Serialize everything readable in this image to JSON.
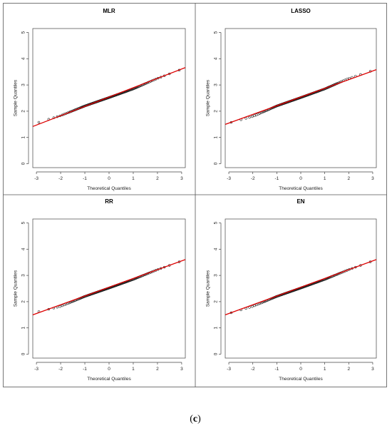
{
  "caption": {
    "open": "(",
    "letter": "c",
    "close": ")"
  },
  "colors": {
    "points": "#222222",
    "fit_line": "#dd0000",
    "border": "#555555",
    "axes": "#444444"
  },
  "chart_data": [
    {
      "type": "scatter",
      "title": "MLR",
      "xlabel": "Theoretical Quantiles",
      "ylabel": "Sample Quantiles",
      "xlim": [
        -3,
        3
      ],
      "ylim": [
        0,
        5
      ],
      "x_ticks": [
        "-3",
        "-2",
        "-1",
        "0",
        "1",
        "2",
        "3"
      ],
      "y_ticks": [
        "0",
        "1",
        "2",
        "3",
        "4",
        "5"
      ],
      "grid": false,
      "qq_points": {
        "n": 160,
        "x_range": [
          -2.9,
          2.9
        ],
        "sample_at": {
          "x": [
            -3,
            -2,
            -1,
            0,
            1,
            2,
            3
          ],
          "y": [
            1.55,
            1.83,
            2.2,
            2.52,
            2.85,
            3.25,
            3.6
          ]
        }
      },
      "fit_line": {
        "x": [
          -3.2,
          3.2
        ],
        "y": [
          1.4,
          3.68
        ]
      }
    },
    {
      "type": "scatter",
      "title": "LASSO",
      "xlabel": "Theoretical Quantiles",
      "ylabel": "Sample Quantiles",
      "xlim": [
        -3,
        3
      ],
      "ylim": [
        0,
        5
      ],
      "x_ticks": [
        "-3",
        "-2",
        "-1",
        "0",
        "1",
        "2",
        "3"
      ],
      "y_ticks": [
        "0",
        "1",
        "2",
        "3",
        "4",
        "5"
      ],
      "grid": false,
      "qq_points": {
        "n": 160,
        "x_range": [
          -2.9,
          2.9
        ],
        "sample_at": {
          "x": [
            -3,
            -2,
            -1,
            0,
            1,
            2,
            3
          ],
          "y": [
            1.55,
            1.8,
            2.2,
            2.52,
            2.85,
            3.25,
            3.55
          ]
        }
      },
      "fit_line": {
        "x": [
          -3.2,
          3.2
        ],
        "y": [
          1.48,
          3.6
        ]
      }
    },
    {
      "type": "scatter",
      "title": "RR",
      "xlabel": "Theoretical Quantiles",
      "ylabel": "Sample Quantiles",
      "xlim": [
        -3,
        3
      ],
      "ylim": [
        0,
        5
      ],
      "x_ticks": [
        "-3",
        "-2",
        "-1",
        "0",
        "1",
        "2",
        "3"
      ],
      "y_ticks": [
        "0",
        "1",
        "2",
        "3",
        "4",
        "5"
      ],
      "grid": false,
      "qq_points": {
        "n": 160,
        "x_range": [
          -2.9,
          2.9
        ],
        "sample_at": {
          "x": [
            -3,
            -2,
            -1,
            0,
            1,
            2,
            3
          ],
          "y": [
            1.6,
            1.82,
            2.2,
            2.52,
            2.85,
            3.22,
            3.55
          ]
        }
      },
      "fit_line": {
        "x": [
          -3.2,
          3.2
        ],
        "y": [
          1.48,
          3.62
        ]
      }
    },
    {
      "type": "scatter",
      "title": "EN",
      "xlabel": "Theoretical Quantiles",
      "ylabel": "Sample Quantiles",
      "xlim": [
        -3,
        3
      ],
      "ylim": [
        0,
        5
      ],
      "x_ticks": [
        "-3",
        "-2",
        "-1",
        "0",
        "1",
        "2",
        "3"
      ],
      "y_ticks": [
        "0",
        "1",
        "2",
        "3",
        "4",
        "5"
      ],
      "grid": false,
      "qq_points": {
        "n": 160,
        "x_range": [
          -2.9,
          2.9
        ],
        "sample_at": {
          "x": [
            -3,
            -2,
            -1,
            0,
            1,
            2,
            3
          ],
          "y": [
            1.55,
            1.82,
            2.2,
            2.52,
            2.85,
            3.22,
            3.55
          ]
        }
      },
      "fit_line": {
        "x": [
          -3.2,
          3.2
        ],
        "y": [
          1.48,
          3.62
        ]
      }
    }
  ]
}
